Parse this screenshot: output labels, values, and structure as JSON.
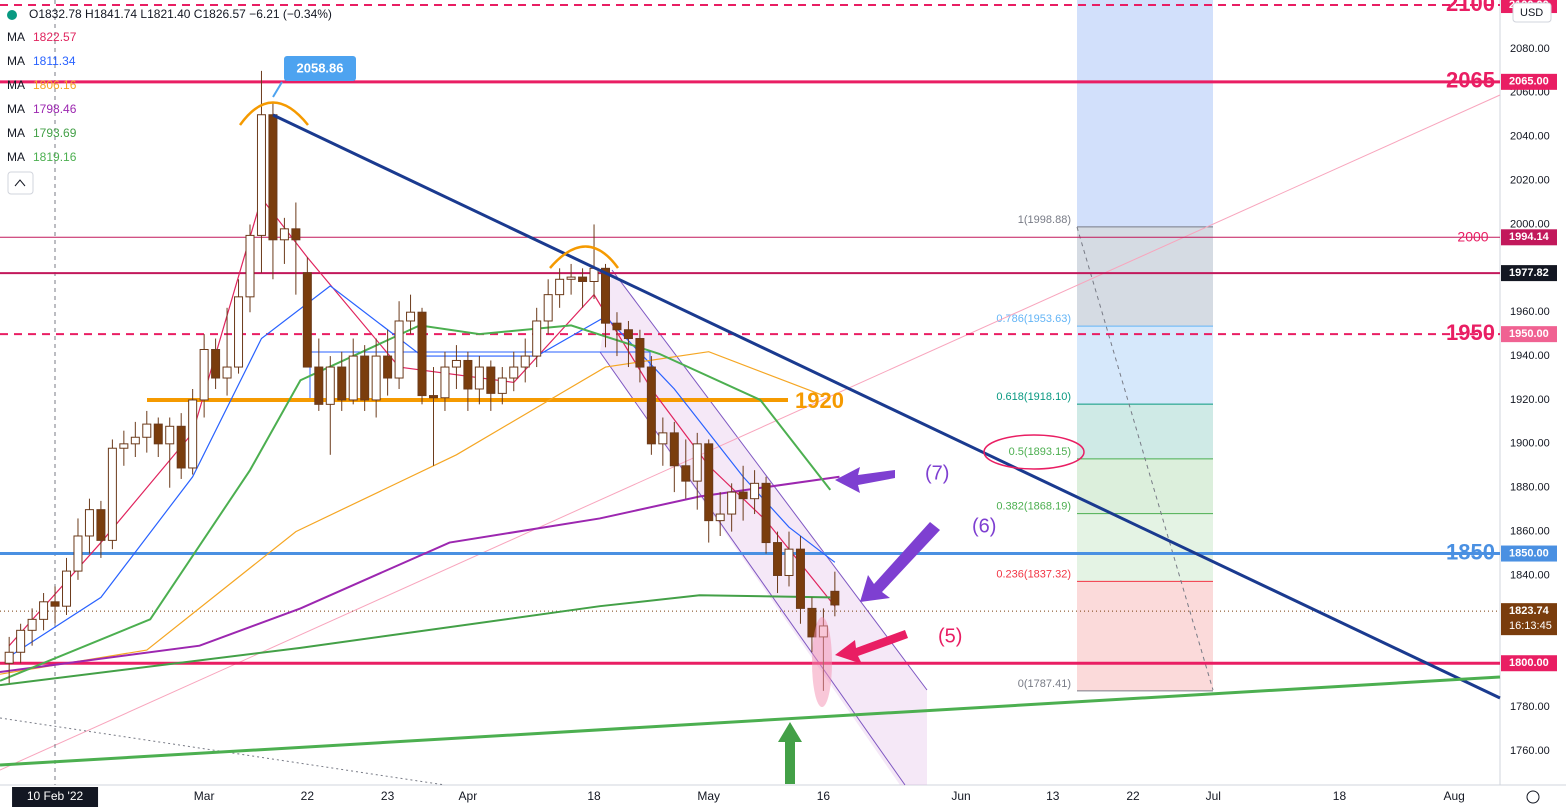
{
  "chart_data": {
    "type": "candlestick",
    "header": "O1832.78 H1841.74 L1821.40 C1826.57 −6.21 (−0.34%)",
    "currency": "USD",
    "xlim": [
      -4.8,
      126
    ],
    "ylim": [
      1744.5,
      2102.3
    ],
    "grid": true,
    "xticks": [
      {
        "value": 0,
        "label": "10 Feb '22"
      },
      {
        "value": 13,
        "label": "Mar"
      },
      22,
      {
        "value": 29,
        "label": "23"
      },
      {
        "value": 36,
        "label": "Apr"
      },
      {
        "value": 47,
        "label": "18"
      },
      {
        "value": 57,
        "label": "May"
      },
      {
        "value": 67,
        "label": "16"
      },
      {
        "value": 79,
        "label": "Jun"
      },
      {
        "value": 87,
        "label": "13"
      },
      {
        "value": 94,
        "label": "22"
      },
      {
        "value": 101,
        "label": "Jul"
      },
      {
        "value": 112,
        "label": "18"
      },
      {
        "value": 122,
        "label": "Aug"
      }
    ],
    "yticks": [
      {
        "value": 2080,
        "label": "2080.00"
      },
      {
        "value": 2060,
        "label": "2060.00"
      },
      {
        "value": 2040,
        "label": "2040.00"
      },
      {
        "value": 2020,
        "label": "2020.00"
      },
      {
        "value": 2000,
        "label": "2000.00"
      },
      {
        "value": 1960,
        "label": "1960.00"
      },
      {
        "value": 1940,
        "label": "1940.00"
      },
      {
        "value": 1920,
        "label": "1920.00"
      },
      {
        "value": 1900,
        "label": "1900.00"
      },
      {
        "value": 1880,
        "label": "1880.00"
      },
      {
        "value": 1860,
        "label": "1860.00"
      },
      {
        "value": 1840,
        "label": "1840.00"
      },
      {
        "value": 1780,
        "label": "1780.00"
      },
      {
        "value": 1760,
        "label": "1760.00"
      }
    ],
    "up_color": "#ffffff",
    "down_color": "#7a3d0d",
    "wick_color": "#6b3a1a",
    "x": [
      -4,
      -3,
      -2,
      -1,
      0,
      1,
      2,
      3,
      4,
      5,
      6,
      7,
      8,
      9,
      10,
      11,
      12,
      13,
      14,
      15,
      16,
      17,
      18,
      19,
      20,
      21,
      22,
      23,
      24,
      25,
      26,
      27,
      28,
      29,
      30,
      31,
      32,
      33,
      34,
      35,
      36,
      37,
      38,
      39,
      40,
      41,
      42,
      43,
      44,
      45,
      46,
      47,
      48,
      49,
      50,
      51,
      52,
      53,
      54,
      55,
      56,
      57,
      58,
      59,
      60,
      61,
      62,
      63,
      64,
      65,
      66,
      67,
      68
    ],
    "candles": [
      [
        1800,
        1812,
        1791,
        1805
      ],
      [
        1805,
        1818,
        1800,
        1815
      ],
      [
        1815,
        1825,
        1808,
        1820
      ],
      [
        1820,
        1832,
        1815,
        1828
      ],
      [
        1828,
        1835,
        1818,
        1826
      ],
      [
        1826,
        1848,
        1822,
        1842
      ],
      [
        1842,
        1866,
        1838,
        1858
      ],
      [
        1858,
        1875,
        1850,
        1870
      ],
      [
        1870,
        1874,
        1848,
        1856
      ],
      [
        1856,
        1902,
        1852,
        1898
      ],
      [
        1898,
        1906,
        1890,
        1900
      ],
      [
        1900,
        1910,
        1894,
        1903
      ],
      [
        1903,
        1915,
        1896,
        1909
      ],
      [
        1909,
        1912,
        1894,
        1900
      ],
      [
        1900,
        1912,
        1880,
        1908
      ],
      [
        1908,
        1914,
        1884,
        1889
      ],
      [
        1889,
        1925,
        1886,
        1920
      ],
      [
        1920,
        1950,
        1912,
        1943
      ],
      [
        1943,
        1948,
        1925,
        1930
      ],
      [
        1930,
        1962,
        1922,
        1935
      ],
      [
        1935,
        1975,
        1932,
        1967
      ],
      [
        1967,
        2000,
        1960,
        1995
      ],
      [
        1995,
        2070,
        1978,
        2050
      ],
      [
        2050,
        2056,
        1975,
        1993
      ],
      [
        1993,
        2003,
        1982,
        1998
      ],
      [
        1998,
        2010,
        1968,
        1993
      ],
      [
        1978,
        1985,
        1935,
        1935
      ],
      [
        1935,
        1948,
        1915,
        1918
      ],
      [
        1918,
        1940,
        1895,
        1935
      ],
      [
        1935,
        1942,
        1915,
        1920
      ],
      [
        1920,
        1948,
        1918,
        1940
      ],
      [
        1940,
        1945,
        1915,
        1920
      ],
      [
        1920,
        1948,
        1912,
        1940
      ],
      [
        1940,
        1952,
        1922,
        1930
      ],
      [
        1930,
        1965,
        1925,
        1956
      ],
      [
        1956,
        1968,
        1950,
        1960
      ],
      [
        1960,
        1962,
        1918,
        1922
      ],
      [
        1922,
        1935,
        1890,
        1921
      ],
      [
        1921,
        1942,
        1915,
        1935
      ],
      [
        1935,
        1945,
        1925,
        1938
      ],
      [
        1938,
        1942,
        1915,
        1925
      ],
      [
        1925,
        1940,
        1918,
        1935
      ],
      [
        1935,
        1938,
        1915,
        1923
      ],
      [
        1923,
        1935,
        1918,
        1930
      ],
      [
        1930,
        1942,
        1924,
        1935
      ],
      [
        1935,
        1948,
        1928,
        1940
      ],
      [
        1940,
        1962,
        1935,
        1956
      ],
      [
        1956,
        1975,
        1950,
        1968
      ],
      [
        1968,
        1980,
        1962,
        1975
      ],
      [
        1975,
        1982,
        1968,
        1976
      ],
      [
        1976,
        1980,
        1962,
        1974
      ],
      [
        1974,
        2000,
        1966,
        1980
      ],
      [
        1980,
        1982,
        1944,
        1955
      ],
      [
        1955,
        1960,
        1940,
        1952
      ],
      [
        1952,
        1956,
        1935,
        1948
      ],
      [
        1948,
        1952,
        1928,
        1935
      ],
      [
        1935,
        1940,
        1895,
        1900
      ],
      [
        1900,
        1912,
        1890,
        1905
      ],
      [
        1905,
        1910,
        1878,
        1890
      ],
      [
        1890,
        1902,
        1875,
        1883
      ],
      [
        1883,
        1905,
        1870,
        1900
      ],
      [
        1900,
        1902,
        1855,
        1865
      ],
      [
        1865,
        1878,
        1858,
        1868
      ],
      [
        1868,
        1882,
        1860,
        1878
      ],
      [
        1878,
        1890,
        1865,
        1875
      ],
      [
        1875,
        1888,
        1868,
        1882
      ],
      [
        1882,
        1885,
        1850,
        1855
      ],
      [
        1855,
        1860,
        1832,
        1840
      ],
      [
        1840,
        1860,
        1835,
        1852
      ],
      [
        1852,
        1858,
        1818,
        1825
      ],
      [
        1825,
        1830,
        1805,
        1812
      ],
      [
        1812,
        1825,
        1787.41,
        1817
      ],
      [
        1832.78,
        1841.74,
        1821.4,
        1826.57
      ]
    ],
    "moving_averages": [
      {
        "name": "MA",
        "legend_value": 1822.57,
        "color": "#e0245e",
        "x": [
          -4,
          4,
          12,
          18,
          22,
          30,
          40,
          47,
          52,
          57,
          62,
          68
        ],
        "values": [
          1808,
          1855,
          1905,
          2012,
          1985,
          1935,
          1928,
          1968,
          1925,
          1890,
          1865,
          1826
        ]
      },
      {
        "name": "MA",
        "legend_value": 1811.34,
        "color": "#2962ff",
        "x": [
          -4,
          4,
          12,
          18,
          24,
          32,
          42,
          48,
          54,
          60,
          64,
          68
        ],
        "values": [
          1803,
          1830,
          1885,
          1948,
          1972,
          1940,
          1940,
          1958,
          1925,
          1885,
          1862,
          1846
        ]
      },
      {
        "name": "MA",
        "legend_value": 1806.16,
        "color": "#f5a623",
        "x": [
          -4.8,
          8,
          21,
          35,
          48,
          57,
          67
        ],
        "values": [
          1795,
          1806,
          1860,
          1895,
          1935,
          1942,
          1922
        ]
      },
      {
        "name": "MA",
        "legend_value": 1798.46,
        "color": "#9c27b0",
        "x": [
          -4.8,
          12.6,
          21.4,
          34.4,
          47.5,
          56.2,
          68.4
        ],
        "values": [
          1796,
          1808,
          1825,
          1855,
          1866,
          1876,
          1885
        ]
      },
      {
        "name": "MA",
        "legend_value": 1793.69,
        "color": "#43a047",
        "x": [
          -4.8,
          21.4,
          47.5,
          56.2,
          67.6
        ],
        "values": [
          1790,
          1807,
          1826,
          1831,
          1830
        ]
      },
      {
        "name": "MA",
        "legend_value": 1819.16,
        "color": "#4caf50",
        "x": [
          -4.8,
          8.3,
          17,
          21.4,
          31.8,
          37,
          45,
          52.7,
          61.5,
          67.6
        ],
        "values": [
          1792,
          1820,
          1888,
          1929,
          1954,
          1950,
          1954,
          1941,
          1920,
          1879
        ]
      }
    ],
    "levels": [
      {
        "value": 2100,
        "label": "2100",
        "tag": "2100.00",
        "color": "#e91e63",
        "dash": true
      },
      {
        "value": 2065,
        "label": "2065",
        "tag": "2065.00",
        "color": "#e91e63",
        "width": 3
      },
      {
        "value": 1994.14,
        "tag": "1994.14",
        "color": "#c2185b",
        "width": 1
      },
      {
        "value": 1977.82,
        "tag": "1977.82",
        "color": "#c2185b",
        "width": 2,
        "tag_color": "#131722"
      },
      {
        "value": 1950,
        "label": "1950",
        "tag": "1950.00",
        "color": "#e91e63",
        "dash": true,
        "tag_color": "#f06292"
      },
      {
        "value": 1850,
        "label": "1850",
        "tag": "1850.00",
        "color": "#4a90e2",
        "width": 3
      },
      {
        "value": 1823.74,
        "tag": "1823.74",
        "countdown": "16:13:45",
        "color": "#7a3d0d",
        "dotted": true
      },
      {
        "value": 1800,
        "tag": "1800.00",
        "color": "#e91e63",
        "width": 3
      }
    ],
    "support": {
      "value": 1920,
      "label": "1920",
      "color": "#f59a00"
    },
    "fib": [
      {
        "value": 1998.88,
        "label": "1(1998.88)",
        "color": "#787b86"
      },
      {
        "value": 1953.63,
        "label": "0.786(1953.63)",
        "color": "#64b5f6"
      },
      {
        "value": 1918.1,
        "label": "0.618(1918.10)",
        "color": "#089981"
      },
      {
        "value": 1893.15,
        "label": "0.5(1893.15)",
        "color": "#4caf50"
      },
      {
        "value": 1868.19,
        "label": "0.382(1868.19)",
        "color": "#4caf50"
      },
      {
        "value": 1837.32,
        "label": "0.236(1837.32)",
        "color": "#f23645"
      },
      {
        "value": 1787.41,
        "label": "0(1787.41)",
        "color": "#787b86"
      }
    ],
    "annotations": {
      "peak": "2058.86",
      "round": "2000",
      "wave7": "(7)",
      "wave6": "(6)",
      "wave5": "(5)"
    }
  }
}
